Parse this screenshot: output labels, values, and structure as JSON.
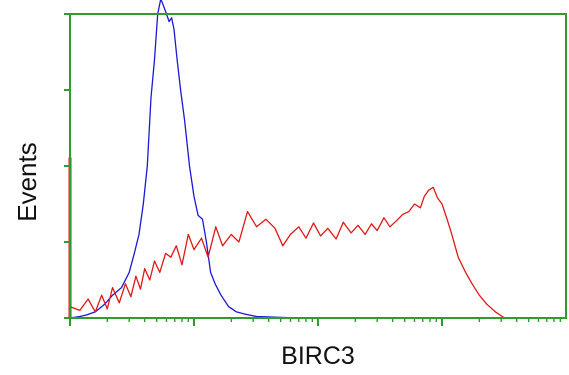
{
  "chart_data": {
    "type": "line",
    "title": "",
    "xlabel": "BIRC3",
    "ylabel": "Events",
    "x_scale": "log",
    "grid": false,
    "legend": "none",
    "frame_color": "#2e9c2e",
    "series": [
      {
        "color": "#1a1ad6",
        "x": [
          1.0,
          1.2,
          1.35,
          1.6,
          1.9,
          2.2,
          2.6,
          3.0,
          3.3,
          3.6,
          3.9,
          4.2,
          4.5,
          4.8,
          5.1,
          5.4,
          5.7,
          6.0,
          6.3,
          6.6,
          6.9,
          7.3,
          7.8,
          8.4,
          9.2,
          10.0,
          10.8,
          11.7,
          12.6,
          13.6,
          14.8,
          16.5,
          19.0,
          22.0,
          26.0,
          32.0,
          45.0,
          70.0
        ],
        "y": [
          0,
          2,
          4,
          8,
          18,
          30,
          40,
          60,
          85,
          110,
          150,
          200,
          290,
          340,
          400,
          420,
          410,
          400,
          390,
          395,
          380,
          340,
          300,
          260,
          200,
          160,
          135,
          130,
          100,
          60,
          45,
          30,
          15,
          8,
          5,
          2,
          1,
          0
        ]
      },
      {
        "color": "#e01818",
        "x": [
          1.0,
          1.2,
          1.4,
          1.6,
          1.8,
          2.0,
          2.2,
          2.5,
          2.8,
          3.1,
          3.4,
          3.7,
          4.0,
          4.4,
          4.8,
          5.3,
          5.9,
          6.5,
          7.2,
          8.0,
          9.0,
          10.0,
          11.5,
          13.0,
          15.0,
          17.0,
          20.0,
          23.0,
          27.0,
          32.0,
          38.0,
          45.0,
          52.0,
          60.0,
          70.0,
          80.0,
          92.0,
          105.0,
          120.0,
          140.0,
          160.0,
          185.0,
          210.0,
          240.0,
          270.0,
          300.0,
          340.0,
          380.0,
          430.0,
          480.0,
          540.0,
          600.0,
          670.0,
          720.0,
          780.0,
          850.0,
          920.0,
          1000.0,
          1100.0,
          1200.0,
          1350.0,
          1550.0,
          1750.0,
          2000.0,
          2300.0,
          2700.0,
          3200.0
        ],
        "y": [
          15,
          10,
          25,
          8,
          30,
          12,
          40,
          20,
          45,
          28,
          55,
          38,
          65,
          50,
          75,
          60,
          85,
          80,
          95,
          70,
          110,
          90,
          105,
          80,
          120,
          95,
          110,
          100,
          140,
          120,
          130,
          118,
          95,
          110,
          120,
          105,
          125,
          108,
          118,
          104,
          126,
          112,
          122,
          110,
          124,
          115,
          132,
          120,
          128,
          136,
          140,
          150,
          145,
          160,
          168,
          172,
          158,
          150,
          130,
          110,
          80,
          60,
          45,
          30,
          18,
          8,
          0
        ]
      },
      {
        "color": "#e01818",
        "x": [
          1.0,
          1.0,
          1.0
        ],
        "y": [
          0,
          210,
          0
        ]
      }
    ],
    "xlim": [
      1,
      10000
    ],
    "ylim": [
      0,
      400
    ]
  }
}
